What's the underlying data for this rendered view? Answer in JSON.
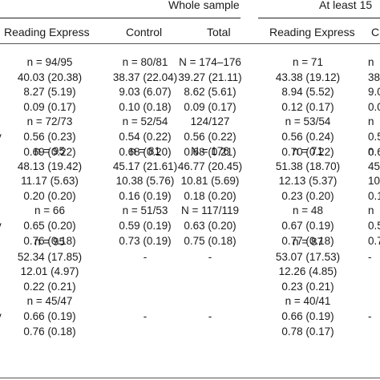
{
  "header": {
    "group_whole": "Whole sample",
    "group_least": "At least 15",
    "columns": [
      "Reading Express",
      "Control",
      "Total",
      "Reading Express",
      "C"
    ]
  },
  "sections": [
    {
      "rows": [
        {
          "c": [
            "n = 94/95",
            "n = 80/81",
            "N = 174–176",
            "n = 71",
            "n"
          ],
          "r": ""
        },
        {
          "c": [
            "40.03 (20.38)",
            "38.37 (22.04)",
            "39.27 (21.11)",
            "43.38 (19.12)",
            "38.3"
          ],
          "r": ""
        },
        {
          "c": [
            "8.27 (5.19)",
            "9.03 (6.07)",
            "8.62 (5.61)",
            "8.94 (5.52)",
            "9.0"
          ],
          "r": ""
        },
        {
          "c": [
            "0.09 (0.17)",
            "0.10 (0.18)",
            "0.09 (0.17)",
            "0.12 (0.17)",
            "0.0"
          ],
          "r": ""
        },
        {
          "c": [
            "n = 72/73",
            "n = 52/54",
            "124/127",
            "n = 53/54",
            "n"
          ],
          "r": ""
        },
        {
          "c": [
            "0.56 (0.23)",
            "0.54 (0.22)",
            "0.56 (0.22)",
            "0.56 (0.24)",
            "0.5"
          ],
          "r": "v"
        },
        {
          "c": [
            "0.69 (0.22)",
            "0.68 (0.20)",
            "0.68 (0.21)",
            "0.70 (0.22)",
            "0.6"
          ],
          "r": ""
        }
      ]
    },
    {
      "rows": [
        {
          "c": [
            "n = 95",
            "n = 81",
            "N = 176",
            "n = 71",
            "n"
          ],
          "r": ""
        },
        {
          "c": [
            "48.13 (19.42)",
            "45.17 (21.61)",
            "46.77 (20.45)",
            "51.38 (18.70)",
            "45.1"
          ],
          "r": ""
        },
        {
          "c": [
            "11.17 (5.63)",
            "10.38 (5.76)",
            "10.81 (5.69)",
            "12.13 (5.37)",
            "10.3"
          ],
          "r": ""
        },
        {
          "c": [
            "0.20 (0.20)",
            "0.16 (0.19)",
            "0.18 (0.20)",
            "0.23 (0.20)",
            "0.1"
          ],
          "r": ""
        },
        {
          "c": [
            "n = 66",
            "n = 51/53",
            "N = 117/119",
            "n = 48",
            "n"
          ],
          "r": ""
        },
        {
          "c": [
            "0.65 (0.20)",
            "0.59 (0.19)",
            "0.63 (0.20)",
            "0.67 (0.19)",
            "0.5"
          ],
          "r": "v"
        },
        {
          "c": [
            "0.76 (0.18)",
            "0.73 (0.19)",
            "0.75 (0.18)",
            "0.77 (0.18)",
            "0.7"
          ],
          "r": ""
        }
      ]
    },
    {
      "rows": [
        {
          "c": [
            "n = 95",
            "",
            "",
            "n = 87",
            ""
          ],
          "r": ""
        },
        {
          "c": [
            "52.34 (17.85)",
            "-",
            "-",
            "53.07 (17.53)",
            "-"
          ],
          "r": ""
        },
        {
          "c": [
            "12.01 (4.97)",
            "",
            "",
            "12.26 (4.85)",
            ""
          ],
          "r": ""
        },
        {
          "c": [
            "0.22 (0.21)",
            "",
            "",
            "0.23 (0.21)",
            ""
          ],
          "r": ""
        },
        {
          "c": [
            "n = 45/47",
            "",
            "",
            "n = 40/41",
            ""
          ],
          "r": ""
        },
        {
          "c": [
            "0.66 (0.19)",
            "-",
            "-",
            "0.66 (0.19)",
            "-"
          ],
          "r": "v"
        },
        {
          "c": [
            "0.76 (0.18)",
            "",
            "",
            "0.78 (0.17)",
            ""
          ],
          "r": ""
        }
      ]
    }
  ]
}
